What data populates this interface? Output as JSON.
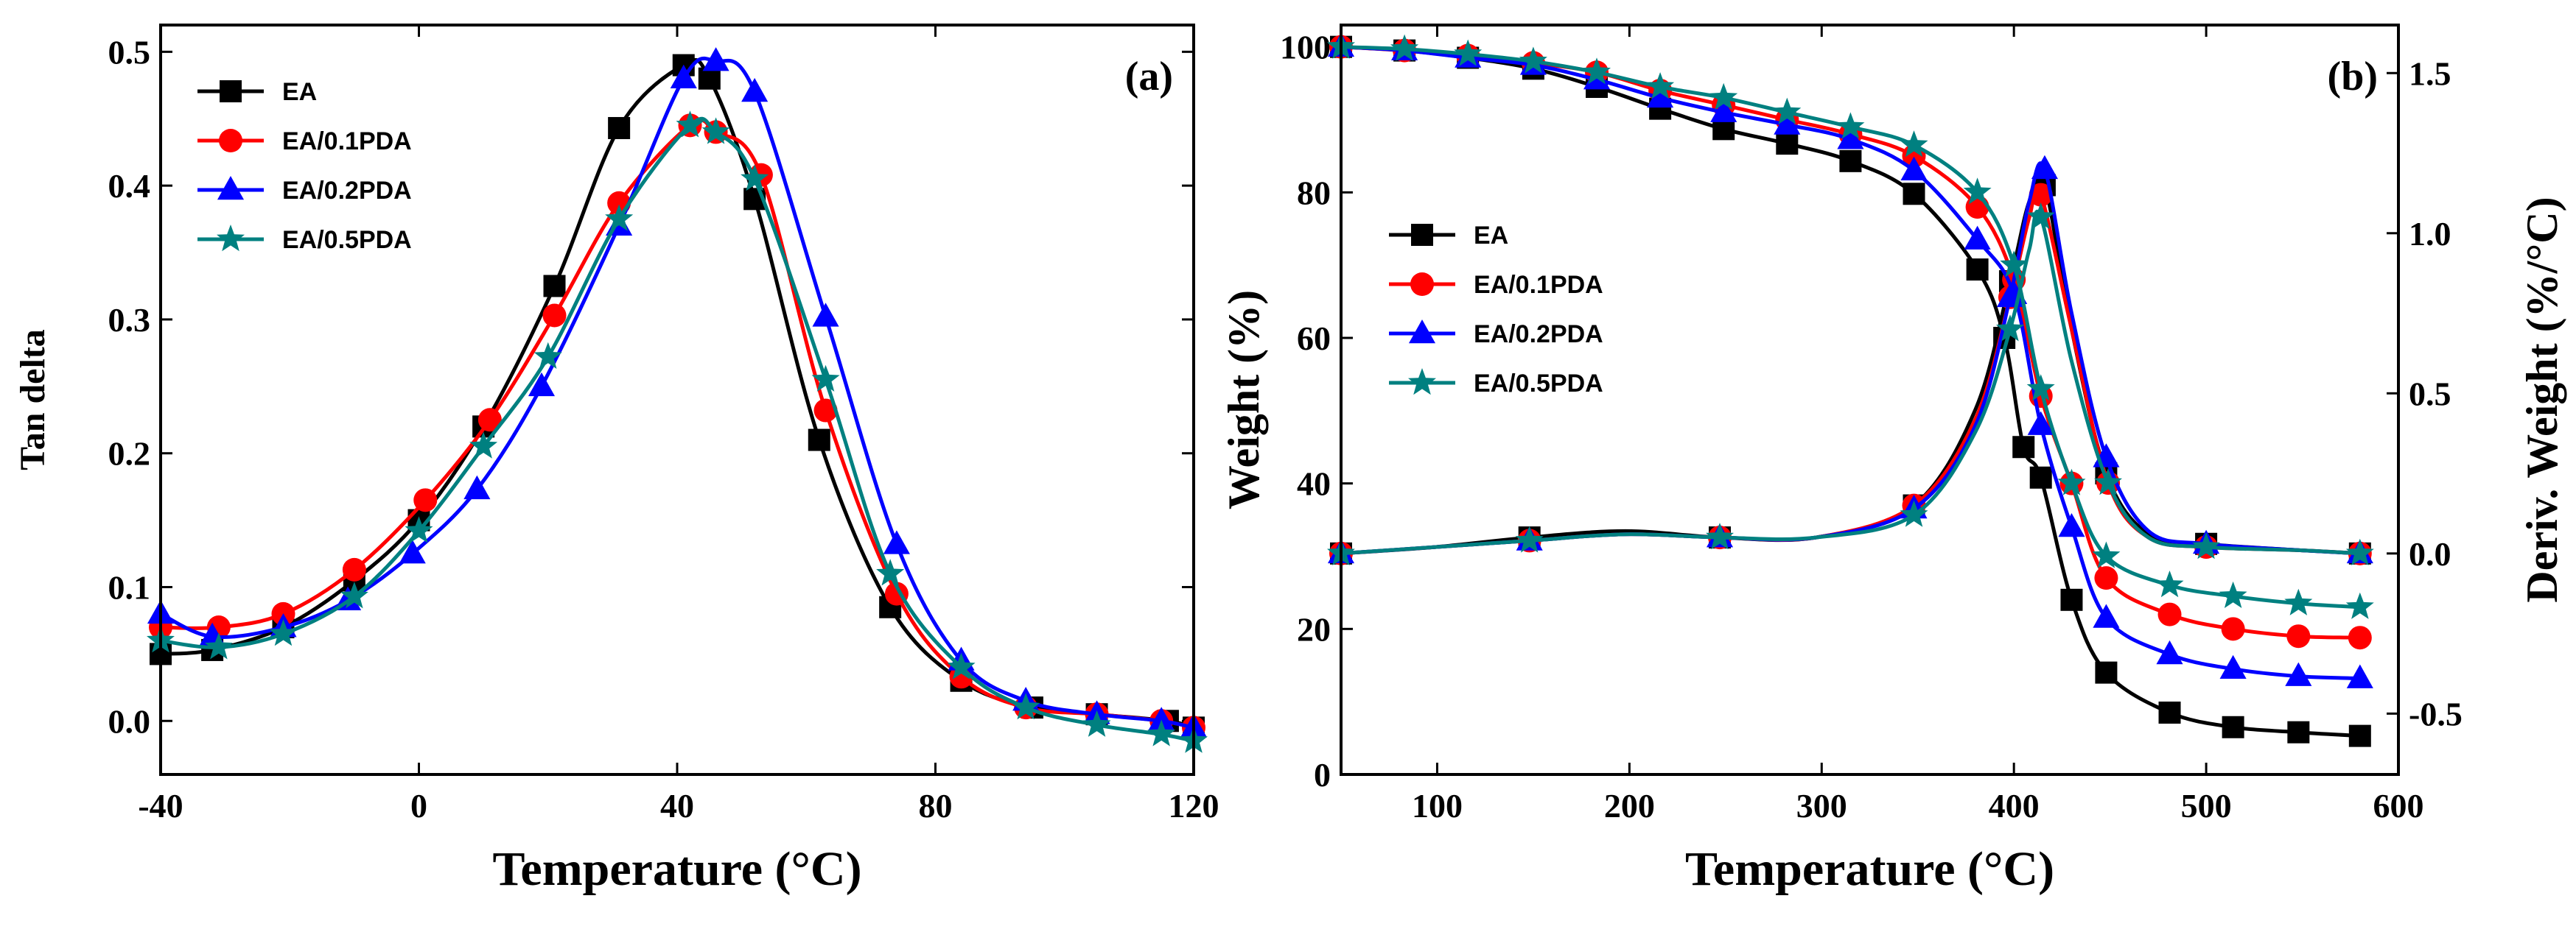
{
  "chart_data": [
    {
      "type": "line",
      "panel_label": "(a)",
      "xlabel": "Temperature (°C)",
      "ylabel": "Tan delta",
      "xlim": [
        -40,
        120
      ],
      "ylim": [
        -0.04,
        0.52
      ],
      "xticks": [
        -40,
        0,
        40,
        80,
        120
      ],
      "xtick_labels": [
        "-40",
        "0",
        "40",
        "80",
        "120"
      ],
      "yticks": [
        0.0,
        0.1,
        0.2,
        0.3,
        0.4,
        0.5
      ],
      "ytick_labels": [
        "0.0",
        "0.1",
        "0.2",
        "0.3",
        "0.4",
        "0.5"
      ],
      "legend_position": "top-left",
      "series": [
        {
          "name": "EA",
          "color": "#000000",
          "marker": "square",
          "x": [
            -40,
            -32,
            -21,
            -10,
            0,
            10,
            21,
            31,
            41,
            45,
            52,
            62,
            73,
            84,
            95,
            105,
            116,
            120
          ],
          "y": [
            0.05,
            0.053,
            0.07,
            0.105,
            0.15,
            0.22,
            0.325,
            0.443,
            0.49,
            0.48,
            0.39,
            0.21,
            0.085,
            0.03,
            0.01,
            0.005,
            0.0,
            -0.005
          ]
        },
        {
          "name": "EA/0.1PDA",
          "color": "#ff0000",
          "marker": "circle",
          "x": [
            -40,
            -31,
            -21,
            -10,
            1,
            11,
            21,
            31,
            42,
            46,
            53,
            63,
            74,
            84,
            94,
            105,
            115,
            120
          ],
          "y": [
            0.07,
            0.07,
            0.08,
            0.113,
            0.165,
            0.225,
            0.303,
            0.387,
            0.445,
            0.44,
            0.408,
            0.232,
            0.095,
            0.033,
            0.01,
            0.005,
            0.0,
            -0.005
          ]
        },
        {
          "name": "EA/0.2PDA",
          "color": "#0000ff",
          "marker": "triangle",
          "x": [
            -40,
            -32,
            -21,
            -11,
            -1,
            9,
            19,
            31,
            41,
            46,
            52,
            63,
            74,
            84,
            94,
            105,
            115,
            120
          ],
          "y": [
            0.08,
            0.063,
            0.07,
            0.09,
            0.125,
            0.173,
            0.25,
            0.37,
            0.48,
            0.493,
            0.47,
            0.302,
            0.132,
            0.045,
            0.015,
            0.005,
            0.0,
            -0.005
          ]
        },
        {
          "name": "EA/0.5PDA",
          "color": "#008080",
          "marker": "star",
          "x": [
            -40,
            -31,
            -21,
            -10,
            0,
            10,
            20,
            31,
            42,
            46,
            52,
            63,
            73,
            84,
            94,
            105,
            115,
            120
          ],
          "y": [
            0.06,
            0.055,
            0.065,
            0.093,
            0.142,
            0.205,
            0.272,
            0.375,
            0.445,
            0.44,
            0.405,
            0.255,
            0.11,
            0.04,
            0.01,
            -0.003,
            -0.01,
            -0.015
          ]
        }
      ]
    },
    {
      "type": "line",
      "panel_label": "(b)",
      "xlabel": "Temperature (°C)",
      "ylabel": "Weight (%)",
      "y2label": "Deriv. Weight (%/°C)",
      "xlim": [
        50,
        600
      ],
      "ylim": [
        0,
        103
      ],
      "y2lim": [
        -0.69,
        1.65
      ],
      "xticks": [
        100,
        200,
        300,
        400,
        500,
        600
      ],
      "xtick_labels": [
        "100",
        "200",
        "300",
        "400",
        "500",
        "600"
      ],
      "yticks": [
        0,
        20,
        40,
        60,
        80,
        100
      ],
      "ytick_labels": [
        "0",
        "20",
        "40",
        "60",
        "80",
        "100"
      ],
      "y2ticks": [
        -0.5,
        0.0,
        0.5,
        1.0,
        1.5
      ],
      "y2tick_labels": [
        "-0.5",
        "0.0",
        "0.5",
        "1.0",
        "1.5"
      ],
      "legend_position": "middle-left",
      "series": [
        {
          "name": "EA",
          "color": "#000000",
          "marker": "square",
          "x": [
            50,
            83,
            116,
            150,
            183,
            216,
            249,
            282,
            315,
            348,
            381,
            395,
            405,
            414,
            430,
            448,
            481,
            514,
            548,
            580
          ],
          "y": [
            100,
            99.5,
            98.5,
            97,
            94.5,
            91.5,
            88.7,
            86.7,
            84.3,
            79.8,
            69.4,
            60,
            45,
            40.8,
            24,
            14,
            8.5,
            6.5,
            5.8,
            5.3
          ],
          "deriv_x": [
            50,
            99,
            148,
            198,
            247,
            297,
            348,
            380,
            398,
            408,
            416,
            430,
            448,
            470,
            500,
            549,
            580
          ],
          "deriv_y": [
            0.0,
            0.02,
            0.05,
            0.07,
            0.05,
            0.05,
            0.15,
            0.45,
            0.85,
            1.1,
            1.15,
            0.7,
            0.25,
            0.06,
            0.03,
            0.01,
            0.0
          ]
        },
        {
          "name": "EA/0.1PDA",
          "color": "#ff0000",
          "marker": "circle",
          "x": [
            50,
            83,
            116,
            150,
            183,
            216,
            249,
            282,
            315,
            348,
            381,
            400,
            414,
            430,
            448,
            481,
            514,
            548,
            580
          ],
          "y": [
            100,
            99.5,
            98.8,
            97.8,
            96.5,
            94,
            92,
            90,
            88,
            85,
            78,
            68,
            52,
            40,
            27,
            22,
            20,
            19,
            18.8
          ],
          "deriv_x": [
            50,
            99,
            148,
            198,
            247,
            297,
            348,
            380,
            398,
            408,
            414,
            430,
            449,
            470,
            500,
            549,
            580
          ],
          "deriv_y": [
            0.0,
            0.02,
            0.04,
            0.06,
            0.05,
            0.05,
            0.15,
            0.42,
            0.8,
            1.05,
            1.12,
            0.7,
            0.22,
            0.05,
            0.02,
            0.01,
            0.0
          ]
        },
        {
          "name": "EA/0.2PDA",
          "color": "#0000ff",
          "marker": "triangle",
          "x": [
            50,
            83,
            116,
            150,
            183,
            216,
            249,
            282,
            315,
            348,
            381,
            400,
            414,
            430,
            448,
            481,
            514,
            548,
            580
          ],
          "y": [
            100,
            99.5,
            98.5,
            97.5,
            95.5,
            93,
            91,
            89.3,
            87.3,
            83,
            73.5,
            66,
            48,
            34,
            21.5,
            16.5,
            14.5,
            13.5,
            13.2
          ],
          "deriv_x": [
            50,
            99,
            148,
            198,
            247,
            297,
            348,
            380,
            398,
            408,
            416,
            430,
            448,
            470,
            500,
            549,
            580
          ],
          "deriv_y": [
            0.0,
            0.02,
            0.04,
            0.06,
            0.05,
            0.05,
            0.14,
            0.4,
            0.8,
            1.1,
            1.2,
            0.75,
            0.3,
            0.07,
            0.03,
            0.01,
            0.0
          ]
        },
        {
          "name": "EA/0.5PDA",
          "color": "#008080",
          "marker": "star",
          "x": [
            50,
            83,
            116,
            150,
            183,
            216,
            249,
            282,
            315,
            348,
            381,
            400,
            414,
            430,
            448,
            481,
            514,
            548,
            580
          ],
          "y": [
            100,
            99.7,
            99,
            98,
            96.5,
            94.5,
            93,
            91,
            89,
            86.5,
            80,
            70,
            53,
            40,
            30,
            26,
            24.5,
            23.5,
            23
          ],
          "deriv_x": [
            50,
            99,
            148,
            198,
            247,
            297,
            348,
            380,
            398,
            408,
            414,
            430,
            449,
            470,
            500,
            549,
            580
          ],
          "deriv_y": [
            0.0,
            0.02,
            0.04,
            0.06,
            0.05,
            0.05,
            0.12,
            0.38,
            0.7,
            0.95,
            1.05,
            0.6,
            0.22,
            0.05,
            0.02,
            0.01,
            0.0
          ]
        }
      ]
    }
  ]
}
